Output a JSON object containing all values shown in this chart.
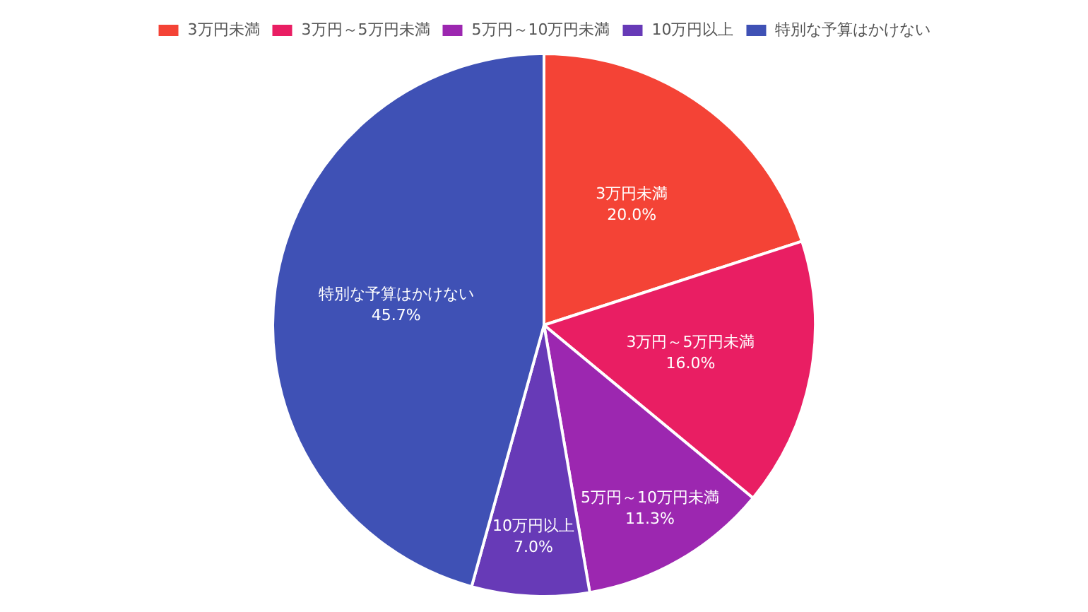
{
  "chart_data": {
    "type": "pie",
    "categories": [
      "3万円未満",
      "3万円～5万円未満",
      "5万円～10万円未満",
      "10万円以上",
      "特別な予算はかけない"
    ],
    "values": [
      20.0,
      16.0,
      11.3,
      7.0,
      45.7
    ],
    "colors": [
      "#f44336",
      "#e91e63",
      "#9c27b0",
      "#673ab7",
      "#3f51b5"
    ],
    "value_labels": [
      "20.0%",
      "16.0%",
      "11.3%",
      "7.0%",
      "45.7%"
    ],
    "legend": "top"
  }
}
